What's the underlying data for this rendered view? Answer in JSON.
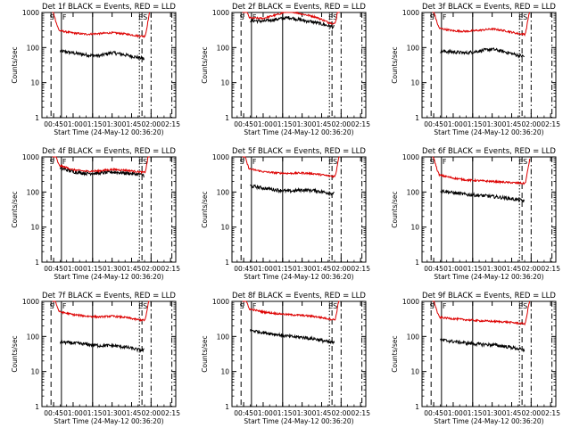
{
  "figure": {
    "event_markers": [
      "S",
      "F",
      "ES"
    ],
    "y_axis_label": "Counts/sec",
    "x_axis_label": "Start Time (24-May-12 00:36:20)",
    "x_ticks": [
      "00:45",
      "01:00",
      "01:15",
      "01:30",
      "01:45",
      "02:00",
      "02:15"
    ],
    "y_ticks": [
      "1",
      "10",
      "100",
      "1000"
    ],
    "colors": {
      "events": "#000000",
      "lld": "#dd0000",
      "background": "#ffffff"
    }
  },
  "chart_data": [
    {
      "type": "line",
      "title": "Det 1f BLACK = Events, RED = LLD",
      "xlabel": "Start Time (24-May-12 00:36:20)",
      "ylabel": "Counts/sec",
      "xlim": [
        "00:36",
        "02:19"
      ],
      "ylim": [
        1,
        1000
      ],
      "y_scale": "log",
      "x": [
        "00:50",
        "01:00",
        "01:10",
        "01:20",
        "01:30",
        "01:40",
        "01:50",
        "01:55"
      ],
      "series": [
        {
          "name": "Events",
          "color": "#000000",
          "values": [
            80,
            70,
            62,
            58,
            72,
            62,
            52,
            48
          ]
        },
        {
          "name": "LLD",
          "color": "#dd0000",
          "values": [
            300,
            260,
            240,
            250,
            265,
            245,
            215,
            210
          ]
        }
      ],
      "vertical_lines": [
        "00:43",
        "00:51",
        "01:15",
        "01:51",
        "01:53",
        "02:00",
        "02:16"
      ]
    },
    {
      "type": "line",
      "title": "Det 2f BLACK = Events, RED = LLD",
      "xlabel": "Start Time (24-May-12 00:36:20)",
      "ylabel": "Counts/sec",
      "xlim": [
        "00:36",
        "02:19"
      ],
      "ylim": [
        1,
        1000
      ],
      "y_scale": "log",
      "x": [
        "00:50",
        "01:00",
        "01:10",
        "01:20",
        "01:30",
        "01:40",
        "01:50",
        "01:55"
      ],
      "series": [
        {
          "name": "Events",
          "color": "#000000",
          "values": [
            600,
            560,
            640,
            720,
            600,
            520,
            420,
            380
          ]
        },
        {
          "name": "LLD",
          "color": "#dd0000",
          "values": [
            700,
            680,
            850,
            1100,
            900,
            750,
            520,
            480
          ]
        }
      ],
      "vertical_lines": [
        "00:43",
        "00:51",
        "01:15",
        "01:51",
        "01:53",
        "02:00",
        "02:16"
      ]
    },
    {
      "type": "line",
      "title": "Det 3f BLACK = Events, RED = LLD",
      "xlabel": "Start Time (24-May-12 00:36:20)",
      "ylabel": "Counts/sec",
      "xlim": [
        "00:36",
        "02:19"
      ],
      "ylim": [
        1,
        1000
      ],
      "y_scale": "log",
      "x": [
        "00:50",
        "01:00",
        "01:10",
        "01:20",
        "01:30",
        "01:40",
        "01:50",
        "01:55"
      ],
      "series": [
        {
          "name": "Events",
          "color": "#000000",
          "values": [
            80,
            75,
            70,
            80,
            90,
            75,
            60,
            55
          ]
        },
        {
          "name": "LLD",
          "color": "#dd0000",
          "values": [
            350,
            300,
            290,
            310,
            340,
            300,
            250,
            240
          ]
        }
      ],
      "vertical_lines": [
        "00:43",
        "00:51",
        "01:15",
        "01:51",
        "01:53",
        "02:00",
        "02:16"
      ]
    },
    {
      "type": "line",
      "title": "Det 4f BLACK = Events, RED = LLD",
      "xlabel": "Start Time (24-May-12 00:36:20)",
      "ylabel": "Counts/sec",
      "xlim": [
        "00:36",
        "02:19"
      ],
      "ylim": [
        1,
        1000
      ],
      "y_scale": "log",
      "x": [
        "00:50",
        "01:00",
        "01:10",
        "01:20",
        "01:30",
        "01:40",
        "01:50",
        "01:55"
      ],
      "series": [
        {
          "name": "Events",
          "color": "#000000",
          "values": [
            480,
            380,
            340,
            345,
            370,
            350,
            320,
            300
          ]
        },
        {
          "name": "LLD",
          "color": "#dd0000",
          "values": [
            560,
            430,
            390,
            400,
            440,
            420,
            380,
            360
          ]
        }
      ],
      "vertical_lines": [
        "00:43",
        "00:51",
        "01:15",
        "01:51",
        "01:53",
        "02:00",
        "02:16"
      ]
    },
    {
      "type": "line",
      "title": "Det 5f BLACK = Events, RED = LLD",
      "xlabel": "Start Time (24-May-12 00:36:20)",
      "ylabel": "Counts/sec",
      "xlim": [
        "00:36",
        "02:19"
      ],
      "ylim": [
        1,
        1000
      ],
      "y_scale": "log",
      "x": [
        "00:50",
        "01:00",
        "01:10",
        "01:20",
        "01:30",
        "01:40",
        "01:50",
        "01:55"
      ],
      "series": [
        {
          "name": "Events",
          "color": "#000000",
          "values": [
            150,
            130,
            115,
            105,
            115,
            110,
            95,
            90
          ]
        },
        {
          "name": "LLD",
          "color": "#dd0000",
          "values": [
            450,
            380,
            350,
            340,
            350,
            330,
            290,
            280
          ]
        }
      ],
      "vertical_lines": [
        "00:43",
        "00:51",
        "01:15",
        "01:51",
        "01:53",
        "02:00",
        "02:16"
      ]
    },
    {
      "type": "line",
      "title": "Det 6f BLACK = Events, RED = LLD",
      "xlabel": "Start Time (24-May-12 00:36:20)",
      "ylabel": "Counts/sec",
      "xlim": [
        "00:36",
        "02:19"
      ],
      "ylim": [
        1,
        1000
      ],
      "y_scale": "log",
      "x": [
        "00:50",
        "01:00",
        "01:10",
        "01:20",
        "01:30",
        "01:40",
        "01:50",
        "01:55"
      ],
      "series": [
        {
          "name": "Events",
          "color": "#000000",
          "values": [
            110,
            95,
            85,
            80,
            75,
            68,
            60,
            55
          ]
        },
        {
          "name": "LLD",
          "color": "#dd0000",
          "values": [
            300,
            250,
            220,
            210,
            200,
            190,
            180,
            175
          ]
        }
      ],
      "vertical_lines": [
        "00:43",
        "00:51",
        "01:15",
        "01:51",
        "01:53",
        "02:00",
        "02:16"
      ]
    },
    {
      "type": "line",
      "title": "Det 7f BLACK = Events, RED = LLD",
      "xlabel": "Start Time (24-May-12 00:36:20)",
      "ylabel": "Counts/sec",
      "xlim": [
        "00:36",
        "02:19"
      ],
      "ylim": [
        1,
        1000
      ],
      "y_scale": "log",
      "x": [
        "00:50",
        "01:00",
        "01:10",
        "01:20",
        "01:30",
        "01:40",
        "01:50",
        "01:55"
      ],
      "series": [
        {
          "name": "Events",
          "color": "#000000",
          "values": [
            70,
            65,
            60,
            55,
            55,
            50,
            42,
            40
          ]
        },
        {
          "name": "LLD",
          "color": "#dd0000",
          "values": [
            500,
            420,
            380,
            360,
            380,
            350,
            300,
            290
          ]
        }
      ],
      "vertical_lines": [
        "00:43",
        "00:51",
        "01:15",
        "01:51",
        "01:53",
        "02:00",
        "02:16"
      ]
    },
    {
      "type": "line",
      "title": "Det 8f BLACK = Events, RED = LLD",
      "xlabel": "Start Time (24-May-12 00:36:20)",
      "ylabel": "Counts/sec",
      "xlim": [
        "00:36",
        "02:19"
      ],
      "ylim": [
        1,
        1000
      ],
      "y_scale": "log",
      "x": [
        "00:50",
        "01:00",
        "01:10",
        "01:20",
        "01:30",
        "01:40",
        "01:50",
        "01:55"
      ],
      "series": [
        {
          "name": "Events",
          "color": "#000000",
          "values": [
            150,
            130,
            115,
            100,
            95,
            85,
            70,
            65
          ]
        },
        {
          "name": "LLD",
          "color": "#dd0000",
          "values": [
            600,
            500,
            450,
            420,
            400,
            370,
            320,
            300
          ]
        }
      ],
      "vertical_lines": [
        "00:43",
        "00:51",
        "01:15",
        "01:51",
        "01:53",
        "02:00",
        "02:16"
      ]
    },
    {
      "type": "line",
      "title": "Det 9f BLACK = Events, RED = LLD",
      "xlabel": "Start Time (24-May-12 00:36:20)",
      "ylabel": "Counts/sec",
      "xlim": [
        "00:36",
        "02:19"
      ],
      "ylim": [
        1,
        1000
      ],
      "y_scale": "log",
      "x": [
        "00:50",
        "01:00",
        "01:10",
        "01:20",
        "01:30",
        "01:40",
        "01:50",
        "01:55"
      ],
      "series": [
        {
          "name": "Events",
          "color": "#000000",
          "values": [
            80,
            72,
            65,
            60,
            58,
            52,
            45,
            40
          ]
        },
        {
          "name": "LLD",
          "color": "#dd0000",
          "values": [
            350,
            320,
            300,
            280,
            270,
            260,
            240,
            230
          ]
        }
      ],
      "vertical_lines": [
        "00:43",
        "00:51",
        "01:15",
        "01:51",
        "01:53",
        "02:00",
        "02:16"
      ]
    }
  ]
}
